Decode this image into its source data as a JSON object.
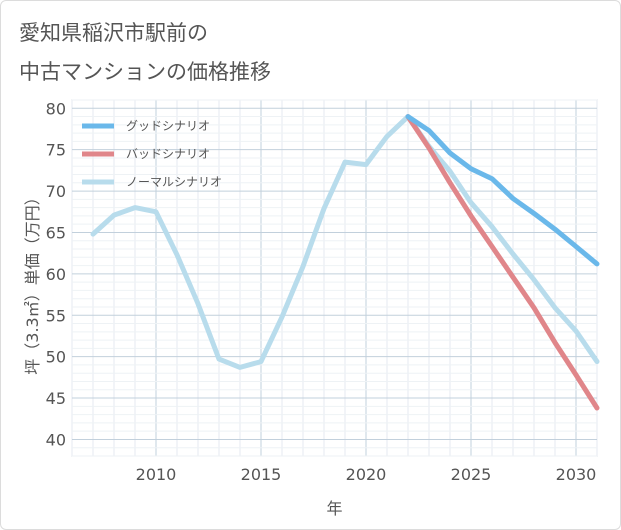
{
  "title_line1": "愛知県稲沢市駅前の",
  "title_line2": "中古マンションの価格推移",
  "chart_data": {
    "type": "line",
    "xlabel": "年",
    "ylabel": "坪（3.3㎡）単価（万円）",
    "xlim": [
      2006,
      2031
    ],
    "ylim": [
      38,
      81
    ],
    "xticks": [
      2010,
      2015,
      2020,
      2025,
      2030
    ],
    "yticks": [
      40,
      45,
      50,
      55,
      60,
      65,
      70,
      75,
      80
    ],
    "grid": true,
    "legend_position": "top-left",
    "series": [
      {
        "name": "グッドシナリオ",
        "color": "#6ab8ea",
        "x": [
          2022,
          2023,
          2024,
          2025,
          2026,
          2027,
          2028,
          2029,
          2030,
          2031
        ],
        "y": [
          79.0,
          77.3,
          74.6,
          72.7,
          71.5,
          69.1,
          67.3,
          65.4,
          63.3,
          61.2
        ]
      },
      {
        "name": "バッドシナリオ",
        "color": "#e0868a",
        "x": [
          2022,
          2023,
          2024,
          2025,
          2026,
          2027,
          2028,
          2029,
          2030,
          2031
        ],
        "y": [
          79.0,
          75.2,
          71.0,
          67.0,
          63.3,
          59.6,
          55.9,
          51.7,
          47.8,
          43.8
        ]
      },
      {
        "name": "ノーマルシナリオ",
        "color": "#b8dcec",
        "x": [
          2007,
          2008,
          2009,
          2010,
          2011,
          2012,
          2013,
          2014,
          2015,
          2016,
          2017,
          2018,
          2019,
          2020,
          2021,
          2022,
          2023,
          2024,
          2025,
          2026,
          2027,
          2028,
          2029,
          2030,
          2031
        ],
        "y": [
          64.8,
          67.1,
          68.0,
          67.5,
          62.3,
          56.4,
          49.7,
          48.7,
          49.4,
          54.8,
          60.9,
          67.9,
          73.5,
          73.2,
          76.6,
          79.0,
          75.4,
          72.4,
          68.6,
          65.7,
          62.4,
          59.3,
          55.9,
          53.1,
          49.4
        ]
      }
    ]
  }
}
